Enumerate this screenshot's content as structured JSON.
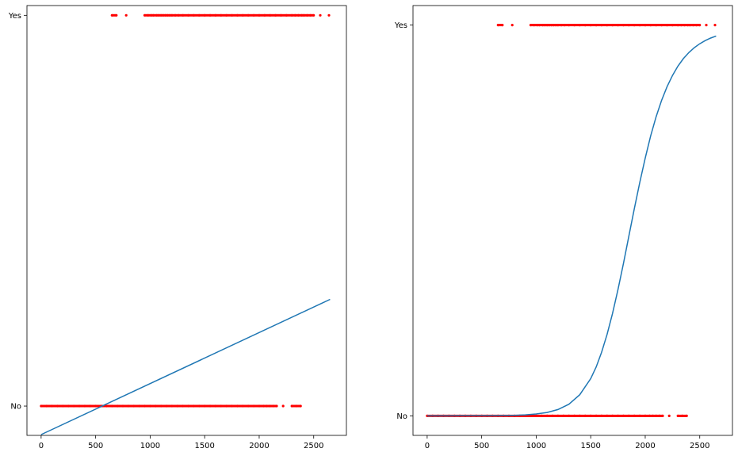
{
  "chart_data": [
    {
      "type": "scatter",
      "title": "",
      "xlabel": "",
      "ylabel": "",
      "xlim": [
        -130,
        2800
      ],
      "ylim": [
        -0.075,
        1.025
      ],
      "xticks": [
        0,
        500,
        1000,
        1500,
        2000,
        2500
      ],
      "yticks": [
        {
          "value": 0,
          "label": "No"
        },
        {
          "value": 1,
          "label": "Yes"
        }
      ],
      "grid": false,
      "colors": {
        "points": "#ff0000",
        "line": "#1f77b4"
      },
      "series": [
        {
          "kind": "points",
          "y": 1,
          "x": [
            650,
            690,
            780,
            950,
            980,
            1010,
            1030,
            1060,
            1080,
            1100,
            1120,
            1140,
            1160,
            1180,
            1200,
            1230,
            1260,
            1300,
            1350,
            1400,
            1450,
            1500,
            1550,
            1600,
            1650,
            1700,
            1750,
            1800,
            1850,
            1900,
            1950,
            2000,
            2050,
            2100,
            2150,
            2200,
            2250,
            2300,
            2330,
            2360,
            2390,
            2410,
            2440,
            2470,
            2500,
            2560,
            2640
          ]
        },
        {
          "kind": "points",
          "y": 0,
          "x": [
            0,
            50,
            100,
            150,
            200,
            250,
            300,
            350,
            400,
            450,
            500,
            550,
            600,
            650,
            700,
            750,
            800,
            850,
            900,
            950,
            1000,
            1050,
            1100,
            1150,
            1200,
            1250,
            1300,
            1350,
            1400,
            1450,
            1500,
            1550,
            1600,
            1650,
            1700,
            1750,
            1800,
            1850,
            1900,
            1950,
            2000,
            2040,
            2070,
            2100,
            2130,
            2160,
            2220,
            2300,
            2340,
            2380
          ]
        },
        {
          "kind": "line",
          "x": [
            0,
            2650
          ],
          "y": [
            -0.073,
            0.273
          ]
        }
      ]
    },
    {
      "type": "scatter",
      "title": "",
      "xlabel": "",
      "ylabel": "",
      "xlim": [
        -130,
        2800
      ],
      "ylim": [
        -0.05,
        1.05
      ],
      "xticks": [
        0,
        500,
        1000,
        1500,
        2000,
        2500
      ],
      "yticks": [
        {
          "value": 0,
          "label": "No"
        },
        {
          "value": 1,
          "label": "Yes"
        }
      ],
      "grid": false,
      "colors": {
        "points": "#ff0000",
        "line": "#1f77b4"
      },
      "series": [
        {
          "kind": "points",
          "y": 1,
          "x": [
            650,
            690,
            780,
            950,
            980,
            1010,
            1030,
            1060,
            1080,
            1100,
            1120,
            1140,
            1160,
            1180,
            1200,
            1230,
            1260,
            1300,
            1350,
            1400,
            1450,
            1500,
            1550,
            1600,
            1650,
            1700,
            1750,
            1800,
            1850,
            1900,
            1950,
            2000,
            2050,
            2100,
            2150,
            2200,
            2250,
            2300,
            2330,
            2360,
            2390,
            2410,
            2440,
            2470,
            2500,
            2560,
            2640
          ]
        },
        {
          "kind": "points",
          "y": 0,
          "x": [
            0,
            50,
            100,
            150,
            200,
            250,
            300,
            350,
            400,
            450,
            500,
            550,
            600,
            650,
            700,
            750,
            800,
            850,
            900,
            950,
            1000,
            1050,
            1100,
            1150,
            1200,
            1250,
            1300,
            1350,
            1400,
            1450,
            1500,
            1550,
            1600,
            1650,
            1700,
            1750,
            1800,
            1850,
            1900,
            1950,
            2000,
            2040,
            2070,
            2100,
            2130,
            2160,
            2220,
            2300,
            2340,
            2380
          ]
        },
        {
          "kind": "line",
          "x": [
            0,
            100,
            200,
            300,
            400,
            500,
            600,
            700,
            800,
            900,
            1000,
            1100,
            1200,
            1300,
            1400,
            1500,
            1550,
            1600,
            1650,
            1700,
            1750,
            1800,
            1850,
            1900,
            1950,
            2000,
            2050,
            2100,
            2150,
            2200,
            2250,
            2300,
            2350,
            2400,
            2450,
            2500,
            2550,
            2600,
            2650
          ],
          "y": [
            0.0,
            0.0,
            0.0,
            0.0001,
            0.0001,
            0.0002,
            0.0004,
            0.0007,
            0.0013,
            0.0025,
            0.0047,
            0.0087,
            0.0162,
            0.0298,
            0.0541,
            0.0953,
            0.1252,
            0.1626,
            0.2082,
            0.262,
            0.3232,
            0.39,
            0.4599,
            0.53,
            0.5974,
            0.66,
            0.7163,
            0.7654,
            0.8073,
            0.8424,
            0.8713,
            0.895,
            0.9142,
            0.9297,
            0.9422,
            0.9522,
            0.9603,
            0.9668,
            0.972
          ]
        }
      ]
    }
  ]
}
